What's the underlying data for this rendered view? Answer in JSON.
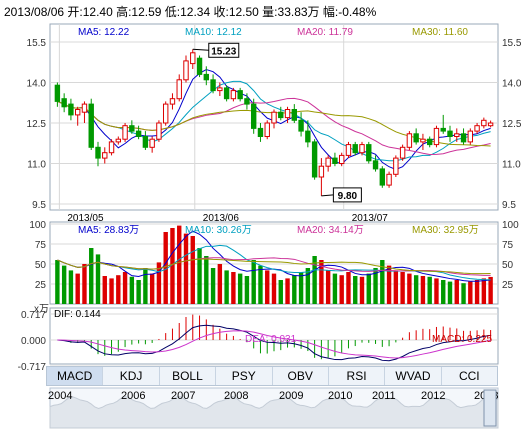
{
  "header": "2013/08/06 开:12.40  高:12.59  低:12.34  收:12.50  量:33.83万  幅:-0.48%",
  "price_panel": {
    "ma_labels": [
      {
        "text": "MA5: 12.22",
        "color": "#0000cc"
      },
      {
        "text": "MA10: 12.12",
        "color": "#00a0c0"
      },
      {
        "text": "MA20: 11.79",
        "color": "#cc3399"
      },
      {
        "text": "MA30: 11.60",
        "color": "#999900"
      }
    ],
    "y_ticks": [
      "15.5",
      "14.0",
      "12.5",
      "11.0",
      "9.5"
    ],
    "x_ticks": [
      "2013/05",
      "2013/06",
      "2013/07"
    ],
    "high_marker": "15.23",
    "low_marker": "9.80"
  },
  "volume_panel": {
    "ma_labels": [
      {
        "text": "MA5: 28.83万",
        "color": "#0000cc"
      },
      {
        "text": "MA10: 30.26万",
        "color": "#00a0c0"
      },
      {
        "text": "MA20: 34.14万",
        "color": "#cc3399"
      },
      {
        "text": "MA30: 32.95万",
        "color": "#999900"
      }
    ],
    "y_ticks": [
      "100",
      "75",
      "50",
      "25"
    ],
    "unit": "x万"
  },
  "macd_panel": {
    "y_ticks": [
      "0.717",
      "0.000",
      "-0.717"
    ],
    "dif_label": "DIF: 0.144",
    "dea_label": "DEA: 0.031",
    "macd_label": "MACD: 0.225"
  },
  "tabs": [
    "MACD",
    "KDJ",
    "BOLL",
    "PSY",
    "OBV",
    "RSI",
    "WVAD",
    "CCI"
  ],
  "timeline_years": [
    "2004",
    "2006",
    "2007",
    "2008",
    "2009",
    "2010",
    "2011",
    "2012",
    "2013"
  ],
  "colors": {
    "up": "#dd0000",
    "down": "#009900",
    "grid": "#d8d8d8"
  },
  "chart_data": {
    "type": "candlestick",
    "candles": [
      {
        "o": 13.9,
        "h": 14.0,
        "l": 13.1,
        "c": 13.3
      },
      {
        "o": 13.4,
        "h": 13.6,
        "l": 12.9,
        "c": 13.1
      },
      {
        "o": 13.2,
        "h": 13.4,
        "l": 12.6,
        "c": 12.8
      },
      {
        "o": 12.8,
        "h": 13.1,
        "l": 12.4,
        "c": 13.0
      },
      {
        "o": 12.9,
        "h": 13.3,
        "l": 12.5,
        "c": 13.2
      },
      {
        "o": 13.2,
        "h": 13.4,
        "l": 11.5,
        "c": 11.6
      },
      {
        "o": 11.6,
        "h": 11.8,
        "l": 10.9,
        "c": 11.2
      },
      {
        "o": 11.2,
        "h": 11.6,
        "l": 11.0,
        "c": 11.4
      },
      {
        "o": 11.4,
        "h": 11.9,
        "l": 11.3,
        "c": 11.8
      },
      {
        "o": 11.8,
        "h": 12.0,
        "l": 11.7,
        "c": 11.9
      },
      {
        "o": 11.9,
        "h": 12.5,
        "l": 11.8,
        "c": 12.4
      },
      {
        "o": 12.4,
        "h": 12.6,
        "l": 12.1,
        "c": 12.2
      },
      {
        "o": 12.2,
        "h": 12.4,
        "l": 11.9,
        "c": 12.0
      },
      {
        "o": 12.0,
        "h": 12.2,
        "l": 11.5,
        "c": 11.6
      },
      {
        "o": 11.6,
        "h": 12.0,
        "l": 11.4,
        "c": 11.9
      },
      {
        "o": 11.9,
        "h": 12.6,
        "l": 11.8,
        "c": 12.5
      },
      {
        "o": 12.5,
        "h": 13.3,
        "l": 12.4,
        "c": 13.2
      },
      {
        "o": 13.2,
        "h": 13.6,
        "l": 13.0,
        "c": 13.4
      },
      {
        "o": 13.4,
        "h": 14.3,
        "l": 13.3,
        "c": 14.1
      },
      {
        "o": 14.1,
        "h": 15.0,
        "l": 14.0,
        "c": 14.8
      },
      {
        "o": 14.7,
        "h": 15.23,
        "l": 14.5,
        "c": 15.1
      },
      {
        "o": 14.9,
        "h": 15.0,
        "l": 14.2,
        "c": 14.3
      },
      {
        "o": 14.3,
        "h": 14.6,
        "l": 13.9,
        "c": 14.1
      },
      {
        "o": 14.1,
        "h": 14.3,
        "l": 13.6,
        "c": 13.7
      },
      {
        "o": 13.7,
        "h": 14.0,
        "l": 13.5,
        "c": 13.8
      },
      {
        "o": 13.8,
        "h": 13.9,
        "l": 13.3,
        "c": 13.4
      },
      {
        "o": 13.4,
        "h": 13.8,
        "l": 13.3,
        "c": 13.7
      },
      {
        "o": 13.7,
        "h": 13.8,
        "l": 13.3,
        "c": 13.4
      },
      {
        "o": 13.4,
        "h": 13.6,
        "l": 13.0,
        "c": 13.2
      },
      {
        "o": 13.2,
        "h": 13.4,
        "l": 12.1,
        "c": 12.3
      },
      {
        "o": 12.3,
        "h": 12.5,
        "l": 11.8,
        "c": 12.0
      },
      {
        "o": 12.0,
        "h": 12.6,
        "l": 11.9,
        "c": 12.5
      },
      {
        "o": 12.5,
        "h": 13.0,
        "l": 12.3,
        "c": 12.9
      },
      {
        "o": 12.9,
        "h": 13.1,
        "l": 12.6,
        "c": 12.7
      },
      {
        "o": 12.7,
        "h": 13.1,
        "l": 12.5,
        "c": 13.0
      },
      {
        "o": 13.0,
        "h": 13.2,
        "l": 12.5,
        "c": 12.6
      },
      {
        "o": 12.6,
        "h": 12.9,
        "l": 12.0,
        "c": 12.2
      },
      {
        "o": 12.2,
        "h": 12.6,
        "l": 11.6,
        "c": 11.8
      },
      {
        "o": 11.8,
        "h": 11.9,
        "l": 10.4,
        "c": 10.5
      },
      {
        "o": 10.5,
        "h": 11.2,
        "l": 9.8,
        "c": 10.9
      },
      {
        "o": 10.9,
        "h": 11.3,
        "l": 10.7,
        "c": 11.2
      },
      {
        "o": 11.2,
        "h": 11.4,
        "l": 10.9,
        "c": 11.0
      },
      {
        "o": 11.0,
        "h": 11.4,
        "l": 10.9,
        "c": 11.3
      },
      {
        "o": 11.3,
        "h": 11.8,
        "l": 11.2,
        "c": 11.7
      },
      {
        "o": 11.7,
        "h": 11.8,
        "l": 11.3,
        "c": 11.4
      },
      {
        "o": 11.4,
        "h": 11.8,
        "l": 11.3,
        "c": 11.7
      },
      {
        "o": 11.7,
        "h": 11.8,
        "l": 11.0,
        "c": 11.1
      },
      {
        "o": 11.1,
        "h": 11.3,
        "l": 10.7,
        "c": 10.8
      },
      {
        "o": 10.8,
        "h": 10.9,
        "l": 10.1,
        "c": 10.2
      },
      {
        "o": 10.2,
        "h": 10.7,
        "l": 10.1,
        "c": 10.6
      },
      {
        "o": 10.6,
        "h": 11.3,
        "l": 10.5,
        "c": 11.2
      },
      {
        "o": 11.2,
        "h": 11.7,
        "l": 11.1,
        "c": 11.6
      },
      {
        "o": 11.6,
        "h": 12.2,
        "l": 11.5,
        "c": 12.1
      },
      {
        "o": 12.1,
        "h": 12.3,
        "l": 11.7,
        "c": 11.8
      },
      {
        "o": 11.8,
        "h": 12.1,
        "l": 11.5,
        "c": 11.9
      },
      {
        "o": 11.9,
        "h": 12.0,
        "l": 11.6,
        "c": 11.7
      },
      {
        "o": 11.7,
        "h": 12.4,
        "l": 11.6,
        "c": 12.3
      },
      {
        "o": 12.3,
        "h": 12.8,
        "l": 12.1,
        "c": 12.2
      },
      {
        "o": 12.2,
        "h": 12.4,
        "l": 11.8,
        "c": 12.0
      },
      {
        "o": 12.0,
        "h": 12.3,
        "l": 11.8,
        "c": 12.1
      },
      {
        "o": 12.1,
        "h": 12.3,
        "l": 11.7,
        "c": 11.8
      },
      {
        "o": 11.8,
        "h": 12.3,
        "l": 11.7,
        "c": 12.2
      },
      {
        "o": 12.2,
        "h": 12.5,
        "l": 12.1,
        "c": 12.4
      },
      {
        "o": 12.4,
        "h": 12.7,
        "l": 12.3,
        "c": 12.6
      },
      {
        "o": 12.4,
        "h": 12.59,
        "l": 12.34,
        "c": 12.5
      }
    ],
    "volumes": [
      55,
      48,
      42,
      38,
      50,
      70,
      62,
      35,
      32,
      36,
      40,
      34,
      30,
      45,
      38,
      52,
      90,
      95,
      98,
      88,
      85,
      70,
      60,
      45,
      50,
      42,
      40,
      38,
      35,
      55,
      48,
      42,
      38,
      30,
      32,
      36,
      40,
      45,
      60,
      55,
      42,
      38,
      36,
      40,
      35,
      34,
      38,
      45,
      55,
      48,
      42,
      40,
      38,
      36,
      35,
      34,
      32,
      30,
      28,
      30,
      26,
      28,
      30,
      32,
      33.83
    ],
    "ylim": [
      9.5,
      15.5
    ]
  }
}
